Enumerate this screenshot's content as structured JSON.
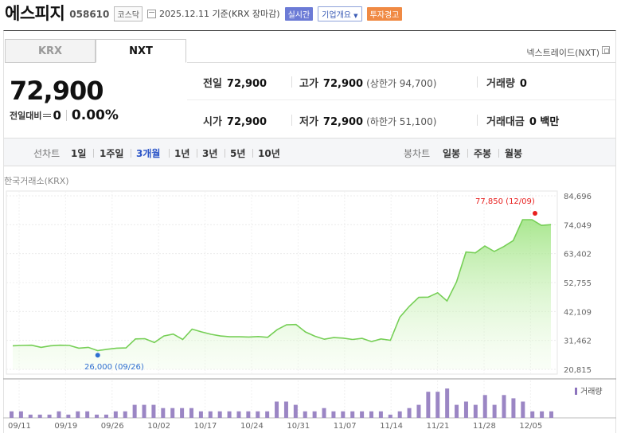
{
  "header": {
    "name": "에스피지",
    "code": "058610",
    "market": "코스닥",
    "date": "2025.12.11 기준(KRX 장마감)",
    "realtime": "실시간",
    "company_info": "기업개요",
    "warning": "투자경고"
  },
  "tabs": {
    "krx": "KRX",
    "nxt": "NXT"
  },
  "nxt_label": "넥스트레이드(NXT)",
  "quote": {
    "price": "72,900",
    "change_label": "전일대비",
    "change_value": "0",
    "change_pct": "0.00%",
    "prev_label": "전일",
    "prev": "72,900",
    "high_label": "고가",
    "high": "72,900",
    "upper_limit": "(상한가 94,700)",
    "volume_label": "거래량",
    "volume": "0",
    "open_label": "시가",
    "open": "72,900",
    "low_label": "저가",
    "low": "72,900",
    "lower_limit": "(하한가 51,100)",
    "amount_label": "거래대금",
    "amount": "0 백만"
  },
  "toolbar": {
    "line_label": "선차트",
    "periods": [
      "1일",
      "1주일",
      "3개월",
      "1년",
      "3년",
      "5년",
      "10년"
    ],
    "active_period": "3개월",
    "candle_label": "봉차트",
    "candles": [
      "일봉",
      "주봉",
      "월봉"
    ]
  },
  "source_label": "한국거래소(KRX)",
  "chart_data": {
    "type": "area",
    "y_ticks": [
      "84,696",
      "74,049",
      "63,402",
      "52,755",
      "42,109",
      "31,462",
      "20,815"
    ],
    "ylim": [
      20815,
      84696
    ],
    "x_ticks": [
      "09/11",
      "09/19",
      "09/26",
      "10/02",
      "10/17",
      "10/24",
      "10/31",
      "11/07",
      "11/14",
      "11/21",
      "11/28",
      "12/05"
    ],
    "max_annotation": "77,850 (12/09)",
    "min_annotation": "26,000 (09/26)",
    "volume_label": "거래량",
    "price": [
      29500,
      29600,
      29700,
      28900,
      29500,
      29700,
      29600,
      28600,
      28900,
      27700,
      28200,
      28600,
      28700,
      32000,
      32100,
      30700,
      33100,
      33800,
      31800,
      35600,
      34600,
      33700,
      33100,
      32800,
      32800,
      32700,
      32900,
      32600,
      35400,
      37200,
      37300,
      34600,
      33000,
      31900,
      32500,
      32300,
      31800,
      32200,
      31000,
      32000,
      31500,
      40000,
      44000,
      47300,
      47400,
      49000,
      46000,
      53000,
      64000,
      63700,
      66200,
      64200,
      66000,
      68200,
      75900,
      75900,
      73800,
      74100
    ],
    "volume": [
      2,
      2,
      1,
      1,
      1,
      2,
      1,
      2,
      2,
      1,
      1,
      2,
      2,
      4,
      4,
      4,
      3,
      3,
      3,
      3,
      2,
      2,
      2,
      2,
      2,
      2,
      2,
      2,
      5,
      5,
      4,
      2,
      2,
      3,
      2,
      2,
      2,
      2,
      2,
      2,
      1,
      2,
      3,
      4,
      8,
      8,
      9,
      4,
      5,
      4,
      7,
      4,
      7,
      6,
      5,
      2,
      2,
      2
    ],
    "volume_ylim": [
      0,
      10
    ]
  }
}
